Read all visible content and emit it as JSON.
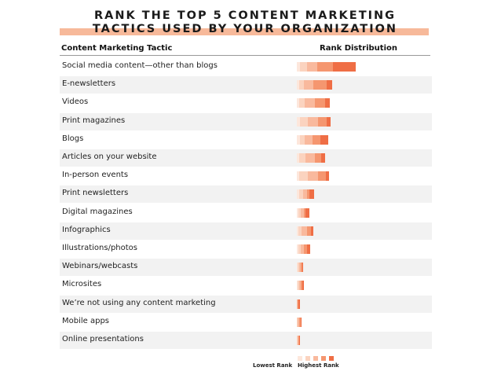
{
  "title": {
    "line1": "RANK THE TOP 5 CONTENT MARKETING",
    "line2": "TACTICS USED BY YOUR ORGANIZATION"
  },
  "columns": {
    "tactic": "Content Marketing Tactic",
    "rank": "Rank Distribution"
  },
  "legend": {
    "low": "Lowest Rank",
    "high": "Highest Rank"
  },
  "colors": {
    "rank_shades": [
      "#fde7dc",
      "#fbd3bf",
      "#f9b99d",
      "#f5966f",
      "#ef6e45"
    ],
    "row_stripe": "#f2f2f2",
    "title_band": "#f7b99a"
  },
  "chart_data": {
    "type": "bar",
    "stacked": true,
    "orientation": "horizontal",
    "rank_order": [
      "rank 5 (lowest)",
      "rank 4",
      "rank 3",
      "rank 2",
      "rank 1 (highest)"
    ],
    "categories": [
      "Social media content—other than blogs",
      "E-newsletters",
      "Videos",
      "Print magazines",
      "Blogs",
      "Articles on your website",
      "In-person events",
      "Print newsletters",
      "Digital magazines",
      "Infographics",
      "Illustrations/photos",
      "Webinars/webcasts",
      "Microsites",
      "We’re not using any content marketing",
      "Mobile apps",
      "Online presentations"
    ],
    "values": [
      [
        4,
        9,
        13,
        20,
        29
      ],
      [
        3,
        6,
        12,
        17,
        7
      ],
      [
        3,
        7,
        13,
        13,
        6
      ],
      [
        4,
        10,
        13,
        11,
        5
      ],
      [
        4,
        6,
        10,
        10,
        10
      ],
      [
        3,
        8,
        12,
        8,
        5
      ],
      [
        3,
        11,
        13,
        10,
        4
      ],
      [
        3,
        5,
        5,
        3,
        6
      ],
      [
        2,
        3,
        4,
        2,
        5
      ],
      [
        2,
        4,
        7,
        5,
        3
      ],
      [
        2,
        3,
        4,
        4,
        4
      ],
      [
        1,
        2,
        2,
        2,
        1
      ],
      [
        1,
        2,
        2,
        2,
        2
      ],
      [
        0,
        0,
        1,
        1,
        2
      ],
      [
        0,
        1,
        2,
        2,
        1
      ],
      [
        0,
        1,
        1,
        1,
        1
      ]
    ]
  }
}
